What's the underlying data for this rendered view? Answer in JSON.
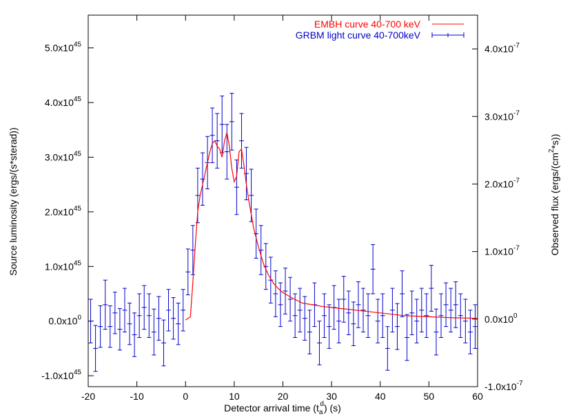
{
  "chart_data": {
    "type": "line",
    "xlabel": "Detector arrival time (t",
    "xlabel_sub": "a",
    "xlabel_sup": "d",
    "xlabel_tail": ") (s)",
    "ylabel_left": "Source luminosity (ergs/(s*sterad))",
    "ylabel_right_pre": "Observed flux (ergs/(cm",
    "ylabel_right_sup": "2",
    "ylabel_right_post": "*s))",
    "xlim": [
      -20,
      60
    ],
    "ylim_left": [
      -1.2e+45,
      5.6e+45
    ],
    "ylim_right": [
      -1e-07,
      4.5e-07
    ],
    "x_ticks": [
      {
        "v": -20,
        "label": "-20"
      },
      {
        "v": -10,
        "label": "-10"
      },
      {
        "v": 0,
        "label": "0"
      },
      {
        "v": 10,
        "label": "10"
      },
      {
        "v": 20,
        "label": "20"
      },
      {
        "v": 30,
        "label": "30"
      },
      {
        "v": 40,
        "label": "40"
      },
      {
        "v": 50,
        "label": "50"
      },
      {
        "v": 60,
        "label": "60"
      }
    ],
    "y_left_ticks": [
      {
        "v": -1e+45,
        "mant": "-1.0x10",
        "exp": "45"
      },
      {
        "v": 0,
        "mant": "0.0x10",
        "exp": "0"
      },
      {
        "v": 1e+45,
        "mant": "1.0x10",
        "exp": "45"
      },
      {
        "v": 2e+45,
        "mant": "2.0x10",
        "exp": "45"
      },
      {
        "v": 3e+45,
        "mant": "3.0x10",
        "exp": "45"
      },
      {
        "v": 4e+45,
        "mant": "4.0x10",
        "exp": "45"
      },
      {
        "v": 5e+45,
        "mant": "5.0x10",
        "exp": "45"
      }
    ],
    "y_right_ticks": [
      {
        "v": -1e-07,
        "mant": "-1.0x10",
        "exp": "-7"
      },
      {
        "v": 0,
        "mant": "0.0x10",
        "exp": "0"
      },
      {
        "v": 1e-07,
        "mant": "1.0x10",
        "exp": "-7"
      },
      {
        "v": 2e-07,
        "mant": "2.0x10",
        "exp": "-7"
      },
      {
        "v": 3e-07,
        "mant": "3.0x10",
        "exp": "-7"
      },
      {
        "v": 4e-07,
        "mant": "4.0x10",
        "exp": "-7"
      }
    ],
    "legend_position": "top-right",
    "series": [
      {
        "name": "EMBH curve 40-700 keV",
        "color": "#ff0000",
        "style": "line",
        "x": [
          0,
          1,
          1.5,
          2,
          2.5,
          3,
          4,
          5,
          5.5,
          6,
          6.5,
          7,
          7.5,
          8,
          8.5,
          9,
          9.5,
          10,
          10.5,
          11,
          11.5,
          12,
          12.5,
          13,
          14,
          15,
          16,
          17,
          18,
          19,
          20,
          22,
          24,
          26,
          28,
          30,
          35,
          40,
          45,
          50,
          55,
          60
        ],
        "y": [
          2e+43,
          8e+43,
          7e+44,
          1.4e+45,
          2e+45,
          2.3e+45,
          2.7e+45,
          3.1e+45,
          3.25e+45,
          3.3e+45,
          3.2e+45,
          3.15e+45,
          3e+45,
          3.3e+45,
          3.45e+45,
          3.2e+45,
          2.8e+45,
          2.55e+45,
          2.65e+45,
          3.1e+45,
          3.15e+45,
          2.85e+45,
          2.5e+45,
          2.2e+45,
          1.7e+45,
          1.35e+45,
          1.05e+45,
          8.5e+44,
          7e+44,
          6e+44,
          5.2e+44,
          4.2e+44,
          3.3e+44,
          3e+44,
          2.7e+44,
          2.5e+44,
          2e+44,
          1.5e+44,
          1e+44,
          8e+43,
          6e+43,
          5e+43
        ]
      },
      {
        "name": "GRBM light curve 40-700keV",
        "color": "#0000cc",
        "style": "errorbar",
        "x": [
          -19.5,
          -18.5,
          -17.5,
          -16.5,
          -15.5,
          -14.5,
          -13.5,
          -12.5,
          -11.5,
          -10.5,
          -9.5,
          -8.5,
          -7.5,
          -6.5,
          -5.5,
          -4.5,
          -3.5,
          -2.5,
          -1.5,
          -0.5,
          0.5,
          1.5,
          2.5,
          3.5,
          4.5,
          5.5,
          6.5,
          7.5,
          8.5,
          9.5,
          10.5,
          11.5,
          12.5,
          13.5,
          14.5,
          15.5,
          16.5,
          17.5,
          18.5,
          19.5,
          20.5,
          21.5,
          22.5,
          23.5,
          24.5,
          25.5,
          26.5,
          27.5,
          28.5,
          29.5,
          30.5,
          31.5,
          32.5,
          33.5,
          34.5,
          35.5,
          36.5,
          37.5,
          38.5,
          39.5,
          40.5,
          41.5,
          42.5,
          43.5,
          44.5,
          45.5,
          46.5,
          47.5,
          48.5,
          49.5,
          50.5,
          51.5,
          52.5,
          53.5,
          54.5,
          55.5,
          56.5,
          57.5,
          58.5,
          59.5
        ],
        "y": [
          0.0,
          -5e+44,
          -1e+44,
          3e+44,
          -1e+44,
          1.5e+44,
          -1.5e+44,
          2e+44,
          -5e+43,
          -2.5e+44,
          1e+44,
          2.5e+44,
          1e+44,
          -2e+44,
          5e+43,
          -4e+44,
          2e+44,
          5e+43,
          -5e+43,
          2e+44,
          9e+44,
          1.3e+45,
          2.3e+45,
          2.6e+45,
          2.9e+45,
          3.4e+45,
          3.3e+45,
          3.6e+45,
          3.1e+45,
          3.65e+45,
          2.45e+45,
          3.3e+45,
          2.7e+45,
          2.3e+45,
          1.6e+45,
          1.3e+45,
          1e+45,
          7.5e+44,
          5e+44,
          3e+44,
          5.5e+44,
          4e+44,
          1e+44,
          2e+44,
          5e+43,
          -2e+44,
          3e+44,
          -4e+44,
          1e+44,
          -1e+44,
          2.5e+44,
          0.0,
          4e+44,
          1.5e+44,
          -5e+43,
          3e+44,
          2e+44,
          1e+44,
          9.5e+44,
          0.0,
          1e+44,
          -5e+44,
          2e+44,
          -1e+44,
          5e+44,
          -3e+44,
          1.5e+44,
          0.0,
          2e+44,
          1e+44,
          6e+44,
          -2e+44,
          1e+44,
          3e+44,
          2e+44,
          3e+44,
          1e+44,
          0.0,
          -2e+44,
          -1e+44
        ],
        "err": [
          4e+44,
          4.2e+44,
          3.8e+44,
          4.5e+44,
          3.8e+44,
          3.8e+44,
          3.8e+44,
          4e+44,
          3.8e+44,
          4e+44,
          4e+44,
          4e+44,
          4e+44,
          4.2e+44,
          4e+44,
          4.2e+44,
          3.8e+44,
          3.8e+44,
          3.8e+44,
          3.8e+44,
          4.2e+44,
          4.5e+44,
          5e+44,
          4.8e+44,
          4.8e+44,
          5e+44,
          5e+44,
          5.2e+44,
          5e+44,
          5.2e+44,
          5e+44,
          5e+44,
          4.8e+44,
          4.8e+44,
          4.5e+44,
          4.5e+44,
          4.2e+44,
          4.2e+44,
          4.2e+44,
          4e+44,
          4.2e+44,
          4e+44,
          4e+44,
          4e+44,
          4e+44,
          4e+44,
          4e+44,
          4e+44,
          4e+44,
          4e+44,
          4e+44,
          4e+44,
          4.2e+44,
          4e+44,
          4e+44,
          4.2e+44,
          4e+44,
          4e+44,
          4.5e+44,
          4e+44,
          4e+44,
          4e+44,
          4e+44,
          4.2e+44,
          4.2e+44,
          4.2e+44,
          4e+44,
          4e+44,
          4e+44,
          4e+44,
          4.2e+44,
          4.2e+44,
          4e+44,
          4e+44,
          4e+44,
          4.2e+44,
          4e+44,
          4e+44,
          4e+44,
          4e+44
        ]
      }
    ]
  }
}
